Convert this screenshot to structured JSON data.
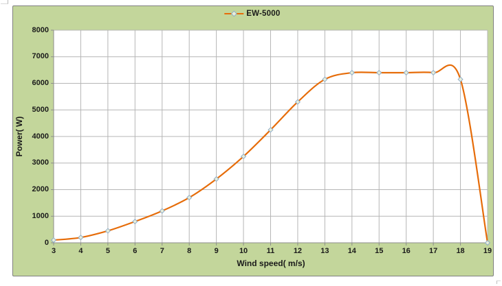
{
  "chart": {
    "colors": {
      "chart_bg": "#c3d69b",
      "chart_border": "#7f7f7f",
      "plot_bg": "#ffffff",
      "gridline": "#b5b5b5",
      "axis_line": "#8c8c8c",
      "series_line": "#e66c09",
      "marker_fill": "#e9eed9",
      "marker_stroke": "#8fadc8",
      "text": "#1a1a1a"
    },
    "legend": {
      "label": "EW-5000",
      "position": "top-center"
    }
  },
  "chart_data": {
    "type": "line",
    "title": "",
    "xlabel": "Wind speed( m/s)",
    "ylabel": "Power( W)",
    "xlim": [
      3,
      19
    ],
    "ylim": [
      0,
      8000
    ],
    "x_ticks": [
      3,
      4,
      5,
      6,
      7,
      8,
      9,
      10,
      11,
      12,
      13,
      14,
      15,
      16,
      17,
      18,
      19
    ],
    "y_ticks": [
      0,
      1000,
      2000,
      3000,
      4000,
      5000,
      6000,
      7000,
      8000
    ],
    "grid": true,
    "smooth": true,
    "marker": "diamond",
    "legend_position": "top-center",
    "series": [
      {
        "name": "EW-5000",
        "x": [
          3,
          4,
          5,
          6,
          7,
          8,
          9,
          10,
          11,
          12,
          13,
          14,
          15,
          16,
          17,
          18,
          19
        ],
        "values": [
          100,
          200,
          450,
          800,
          1200,
          1700,
          2400,
          3250,
          4250,
          5300,
          6150,
          6400,
          6400,
          6400,
          6400,
          6150,
          0
        ]
      }
    ]
  }
}
